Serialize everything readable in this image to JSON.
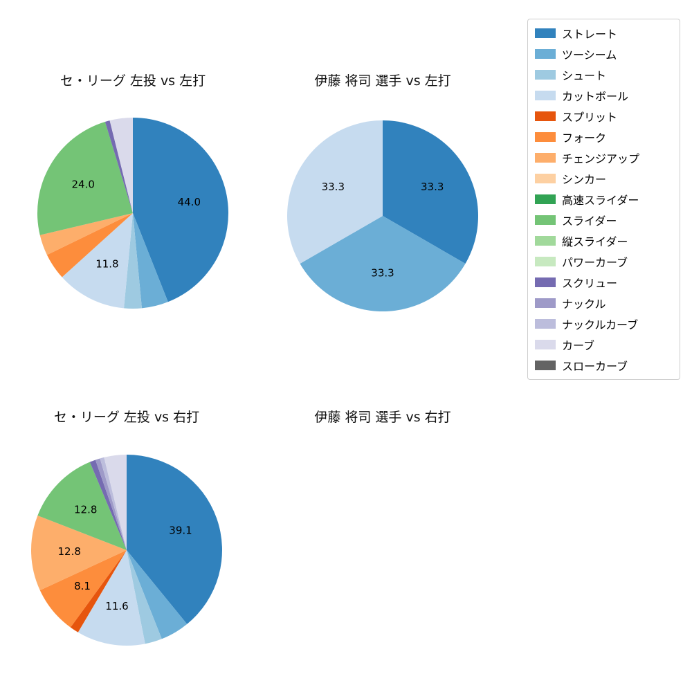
{
  "legend": {
    "position": "upper right",
    "items": [
      {
        "label": "ストレート",
        "color": "#3182bd"
      },
      {
        "label": "ツーシーム",
        "color": "#6baed6"
      },
      {
        "label": "シュート",
        "color": "#9ecae1"
      },
      {
        "label": "カットボール",
        "color": "#c6dbef"
      },
      {
        "label": "スプリット",
        "color": "#e6550d"
      },
      {
        "label": "フォーク",
        "color": "#fd8d3c"
      },
      {
        "label": "チェンジアップ",
        "color": "#fdae6b"
      },
      {
        "label": "シンカー",
        "color": "#fdd0a2"
      },
      {
        "label": "高速スライダー",
        "color": "#31a354"
      },
      {
        "label": "スライダー",
        "color": "#74c476"
      },
      {
        "label": "縦スライダー",
        "color": "#a1d99b"
      },
      {
        "label": "パワーカーブ",
        "color": "#c7e9c0"
      },
      {
        "label": "スクリュー",
        "color": "#756bb1"
      },
      {
        "label": "ナックル",
        "color": "#9e9ac8"
      },
      {
        "label": "ナックルカーブ",
        "color": "#bcbddc"
      },
      {
        "label": "カーブ",
        "color": "#dadaeb"
      },
      {
        "label": "スローカーブ",
        "color": "#636363"
      }
    ]
  },
  "chart_data": [
    {
      "type": "pie",
      "title": "セ・リーグ 左投 vs 左打",
      "start_angle": "top",
      "direction": "clockwise",
      "value_label_format": "0.1f",
      "slices": [
        {
          "label": "ストレート",
          "value": 44.0,
          "show_value": true
        },
        {
          "label": "ツーシーム",
          "value": 4.5,
          "show_value": false
        },
        {
          "label": "シュート",
          "value": 3.0,
          "show_value": false
        },
        {
          "label": "カットボール",
          "value": 11.8,
          "show_value": true
        },
        {
          "label": "フォーク",
          "value": 4.5,
          "show_value": false
        },
        {
          "label": "チェンジアップ",
          "value": 3.5,
          "show_value": false
        },
        {
          "label": "スライダー",
          "value": 24.0,
          "show_value": true
        },
        {
          "label": "スクリュー",
          "value": 0.8,
          "show_value": false
        },
        {
          "label": "カーブ",
          "value": 3.9,
          "show_value": false
        }
      ]
    },
    {
      "type": "pie",
      "title": "伊藤 将司 選手 vs 左打",
      "start_angle": "top",
      "direction": "clockwise",
      "value_label_format": "0.1f",
      "slices": [
        {
          "label": "ストレート",
          "value": 33.3,
          "show_value": true
        },
        {
          "label": "ツーシーム",
          "value": 33.3,
          "show_value": true
        },
        {
          "label": "カットボール",
          "value": 33.3,
          "show_value": true
        }
      ]
    },
    {
      "type": "pie",
      "title": "セ・リーグ 左投 vs 右打",
      "start_angle": "top",
      "direction": "clockwise",
      "value_label_format": "0.1f",
      "slices": [
        {
          "label": "ストレート",
          "value": 39.1,
          "show_value": true
        },
        {
          "label": "ツーシーム",
          "value": 4.9,
          "show_value": false
        },
        {
          "label": "シュート",
          "value": 2.9,
          "show_value": false
        },
        {
          "label": "カットボール",
          "value": 11.6,
          "show_value": true
        },
        {
          "label": "スプリット",
          "value": 1.5,
          "show_value": false
        },
        {
          "label": "フォーク",
          "value": 8.1,
          "show_value": true
        },
        {
          "label": "チェンジアップ",
          "value": 12.8,
          "show_value": true
        },
        {
          "label": "スライダー",
          "value": 12.8,
          "show_value": true
        },
        {
          "label": "スクリュー",
          "value": 1.0,
          "show_value": false
        },
        {
          "label": "ナックル",
          "value": 0.8,
          "show_value": false
        },
        {
          "label": "ナックルカーブ",
          "value": 0.7,
          "show_value": false
        },
        {
          "label": "カーブ",
          "value": 3.8,
          "show_value": false
        }
      ]
    },
    {
      "type": "pie",
      "title": "伊藤 将司 選手 vs 右打",
      "start_angle": "top",
      "direction": "clockwise",
      "slices": []
    }
  ]
}
